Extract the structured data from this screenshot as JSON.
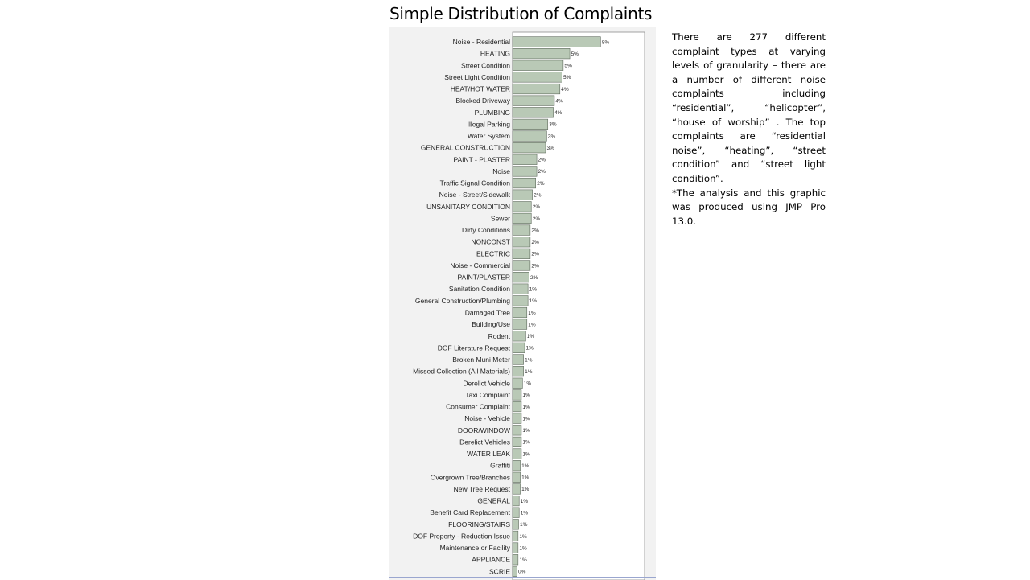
{
  "slide": {
    "title": "Simple Distribution of Complaints"
  },
  "note": {
    "paragraph_1": "There are 277 different complaint types at varying levels of granularity – there are a number of different noise complaints including “residential”, “helicopter”, “house of worship” . The top complaints are “residential noise”, “heating”, “street condition” and “street light condition”.",
    "paragraph_2": "*The analysis and this graphic was produced using JMP Pro 13.0."
  },
  "colors": {
    "bar_fill": "#b9c9b6",
    "bar_stroke": "#5e6a5c",
    "panel_bg": "#f2f2f2",
    "axis": "#8c8c8c"
  },
  "chart_data": {
    "type": "bar",
    "orientation": "horizontal",
    "title": "",
    "xlabel": "",
    "ylabel": "",
    "categories": [
      "Noise - Residential",
      "HEATING",
      "Street Condition",
      "Street Light Condition",
      "HEAT/HOT WATER",
      "Blocked Driveway",
      "PLUMBING",
      "Illegal Parking",
      "Water System",
      "GENERAL CONSTRUCTION",
      "PAINT - PLASTER",
      "Noise",
      "Traffic Signal Condition",
      "Noise - Street/Sidewalk",
      "UNSANITARY CONDITION",
      "Sewer",
      "Dirty Conditions",
      "NONCONST",
      "ELECTRIC",
      "Noise - Commercial",
      "PAINT/PLASTER",
      "Sanitation Condition",
      "General Construction/Plumbing",
      "Damaged Tree",
      "Building/Use",
      "Rodent",
      "DOF Literature Request",
      "Broken Muni Meter",
      "Missed Collection (All Materials)",
      "Derelict Vehicle",
      "Taxi Complaint",
      "Consumer Complaint",
      "Noise - Vehicle",
      "DOOR/WINDOW",
      "Derelict Vehicles",
      "WATER LEAK",
      "Graffiti",
      "Overgrown Tree/Branches",
      "New Tree Request",
      "GENERAL",
      "Benefit Card Replacement",
      "FLOORING/STAIRS",
      "DOF Property - Reduction Issue",
      "Maintenance or Facility",
      "APPLIANCE",
      "SCRIE"
    ],
    "values": [
      8.0,
      5.2,
      4.6,
      4.5,
      4.3,
      3.8,
      3.7,
      3.2,
      3.1,
      3.0,
      2.2,
      2.2,
      2.1,
      1.8,
      1.7,
      1.7,
      1.6,
      1.6,
      1.6,
      1.6,
      1.5,
      1.4,
      1.4,
      1.3,
      1.3,
      1.2,
      1.1,
      1.0,
      1.0,
      0.9,
      0.8,
      0.8,
      0.8,
      0.8,
      0.8,
      0.8,
      0.7,
      0.7,
      0.7,
      0.6,
      0.6,
      0.55,
      0.5,
      0.5,
      0.5,
      0.4
    ],
    "data_labels": [
      "8%",
      "5%",
      "5%",
      "5%",
      "4%",
      "4%",
      "4%",
      "3%",
      "3%",
      "3%",
      "2%",
      "2%",
      "2%",
      "2%",
      "2%",
      "2%",
      "2%",
      "2%",
      "2%",
      "2%",
      "2%",
      "1%",
      "1%",
      "1%",
      "1%",
      "1%",
      "1%",
      "1%",
      "1%",
      "1%",
      "1%",
      "1%",
      "1%",
      "1%",
      "1%",
      "1%",
      "1%",
      "1%",
      "1%",
      "1%",
      "1%",
      "1%",
      "1%",
      "1%",
      "1%",
      "0%"
    ],
    "xlim": [
      0,
      12
    ],
    "grid": false,
    "legend": "none"
  }
}
